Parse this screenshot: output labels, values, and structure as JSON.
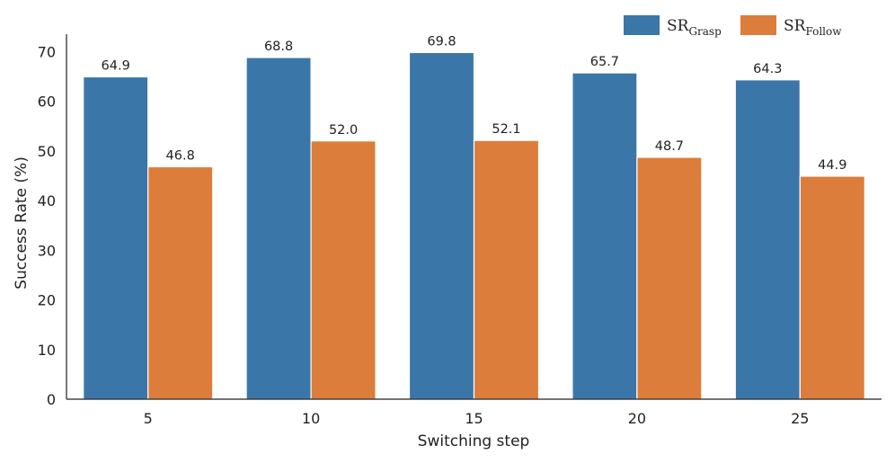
{
  "chart_data": {
    "type": "bar",
    "title": "",
    "xlabel": "Switching step",
    "ylabel": "Success Rate (%)",
    "categories": [
      "5",
      "10",
      "15",
      "20",
      "25"
    ],
    "ylim": [
      0,
      73.5
    ],
    "yticks": [
      0,
      10,
      20,
      30,
      40,
      50,
      60,
      70
    ],
    "grid": false,
    "legend_position": "top-right",
    "series": [
      {
        "name": "SR_Grasp",
        "label_main": "SR",
        "label_sub": "Grasp",
        "color": "#3b76a9",
        "values": [
          64.9,
          68.8,
          69.8,
          65.7,
          64.3
        ],
        "value_labels": [
          "64.9",
          "68.8",
          "69.8",
          "65.7",
          "64.3"
        ]
      },
      {
        "name": "SR_Follow",
        "label_main": "SR",
        "label_sub": "Follow",
        "color": "#dd7d3b",
        "values": [
          46.8,
          52.0,
          52.1,
          48.7,
          44.9
        ],
        "value_labels": [
          "46.8",
          "52.0",
          "52.1",
          "48.7",
          "44.9"
        ]
      }
    ]
  }
}
